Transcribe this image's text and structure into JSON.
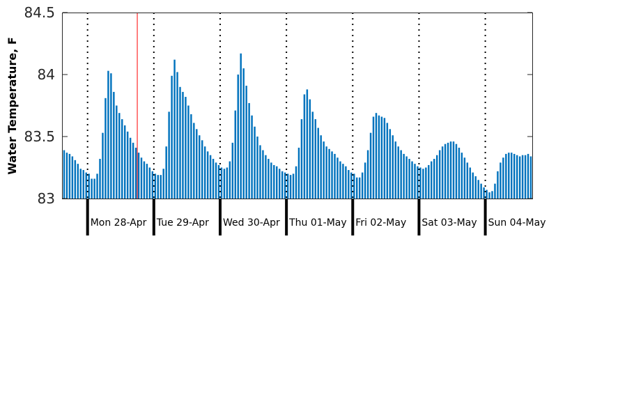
{
  "chart_data": {
    "type": "bar",
    "title": "",
    "xlabel": "",
    "ylabel": "Water Temperature, F",
    "ylim": [
      83,
      84.5
    ],
    "yticks": [
      "83",
      "83.5",
      "84",
      "84.5"
    ],
    "grid": false,
    "legend": "none",
    "colors": {
      "bar": "#0072BD",
      "marker": "#FF0000",
      "axis": "#262626"
    },
    "day_labels": [
      "Mon 28-Apr",
      "Tue 29-Apr",
      "Wed 30-Apr",
      "Thu 01-May",
      "Fri 02-May",
      "Sat 03-May",
      "Sun 04-May"
    ],
    "bars_per_day": 24,
    "leading_bars": 9,
    "marker_after_bar": 27,
    "series": [
      {
        "values": [
          83.39,
          83.37,
          83.36,
          83.34,
          83.31,
          83.28,
          83.24,
          83.23,
          83.21,
          83.2,
          83.16,
          83.16,
          83.2,
          83.32,
          83.53,
          83.81,
          84.03,
          84.01,
          83.86,
          83.75,
          83.69,
          83.64,
          83.59,
          83.54,
          83.49,
          83.45,
          83.41,
          83.37,
          83.33,
          83.3,
          83.28,
          83.25,
          83.22,
          83.2,
          83.19,
          83.19,
          83.24,
          83.42,
          83.7,
          83.99,
          84.12,
          84.02,
          83.9,
          83.86,
          83.82,
          83.75,
          83.68,
          83.61,
          83.56,
          83.51,
          83.47,
          83.42,
          83.38,
          83.35,
          83.32,
          83.29,
          83.27,
          83.25,
          83.24,
          83.25,
          83.3,
          83.45,
          83.71,
          84.0,
          84.17,
          84.05,
          83.91,
          83.77,
          83.67,
          83.58,
          83.5,
          83.43,
          83.39,
          83.35,
          83.32,
          83.29,
          83.27,
          83.26,
          83.24,
          83.22,
          83.21,
          83.2,
          83.19,
          83.2,
          83.26,
          83.41,
          83.64,
          83.84,
          83.88,
          83.8,
          83.7,
          83.64,
          83.57,
          83.51,
          83.46,
          83.42,
          83.4,
          83.38,
          83.36,
          83.33,
          83.3,
          83.28,
          83.26,
          83.23,
          83.21,
          83.2,
          83.17,
          83.17,
          83.21,
          83.29,
          83.39,
          83.53,
          83.66,
          83.69,
          83.67,
          83.66,
          83.65,
          83.61,
          83.56,
          83.51,
          83.46,
          83.42,
          83.39,
          83.36,
          83.34,
          83.32,
          83.3,
          83.28,
          83.26,
          83.25,
          83.24,
          83.25,
          83.27,
          83.3,
          83.32,
          83.35,
          83.39,
          83.42,
          83.44,
          83.45,
          83.46,
          83.46,
          83.44,
          83.41,
          83.37,
          83.33,
          83.29,
          83.25,
          83.21,
          83.18,
          83.15,
          83.12,
          83.09,
          83.07,
          83.05,
          83.06,
          83.12,
          83.22,
          83.29,
          83.33,
          83.36,
          83.37,
          83.37,
          83.36,
          83.35,
          83.34,
          83.35,
          83.35,
          83.36,
          83.34
        ]
      }
    ]
  }
}
